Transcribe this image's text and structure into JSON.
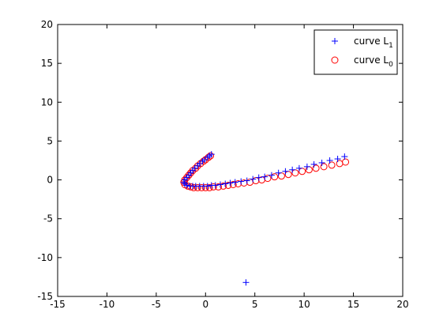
{
  "chart_data": {
    "type": "scatter",
    "title": "",
    "xlabel": "",
    "ylabel": "",
    "xlim": [
      -15,
      20
    ],
    "ylim": [
      -15,
      20
    ],
    "grid": false,
    "legend_position": "top-right",
    "x_ticks": [
      -15,
      -10,
      -5,
      0,
      5,
      10,
      15,
      20
    ],
    "y_ticks": [
      -15,
      -10,
      -5,
      0,
      5,
      10,
      15,
      20
    ],
    "x_tick_labels": [
      "-15",
      "-10",
      "-5",
      "0",
      "5",
      "10",
      "15",
      "20"
    ],
    "y_tick_labels": [
      "-15",
      "-10",
      "-5",
      "0",
      "5",
      "10",
      "15",
      "20"
    ],
    "series": [
      {
        "name": "curve L1",
        "legend_text": "curve L",
        "legend_subscript": "1",
        "marker": "plus",
        "color": "#0000ff",
        "points": [
          [
            0.6,
            3.3
          ],
          [
            0.4,
            3.1
          ],
          [
            0.2,
            2.9
          ],
          [
            -0.1,
            2.6
          ],
          [
            -0.3,
            2.4
          ],
          [
            -0.6,
            2.1
          ],
          [
            -0.8,
            1.8
          ],
          [
            -1.1,
            1.5
          ],
          [
            -1.3,
            1.2
          ],
          [
            -1.5,
            0.9
          ],
          [
            -1.7,
            0.6
          ],
          [
            -1.9,
            0.3
          ],
          [
            -2.1,
            0.0
          ],
          [
            -2.2,
            -0.3
          ],
          [
            -2.1,
            -0.5
          ],
          [
            -1.9,
            -0.7
          ],
          [
            -1.6,
            -0.8
          ],
          [
            -1.3,
            -0.8
          ],
          [
            -1.0,
            -0.8
          ],
          [
            -0.6,
            -0.8
          ],
          [
            -0.2,
            -0.8
          ],
          [
            0.2,
            -0.8
          ],
          [
            0.6,
            -0.7
          ],
          [
            1.0,
            -0.7
          ],
          [
            1.5,
            -0.6
          ],
          [
            2.0,
            -0.5
          ],
          [
            2.5,
            -0.4
          ],
          [
            3.0,
            -0.3
          ],
          [
            3.6,
            -0.2
          ],
          [
            4.2,
            -0.1
          ],
          [
            4.8,
            0.1
          ],
          [
            5.4,
            0.3
          ],
          [
            6.0,
            0.4
          ],
          [
            6.7,
            0.6
          ],
          [
            7.4,
            0.9
          ],
          [
            8.1,
            1.1
          ],
          [
            8.8,
            1.3
          ],
          [
            9.5,
            1.5
          ],
          [
            10.3,
            1.7
          ],
          [
            11.0,
            2.0
          ],
          [
            11.8,
            2.2
          ],
          [
            12.6,
            2.5
          ],
          [
            13.4,
            2.7
          ],
          [
            14.1,
            3.0
          ],
          [
            4.1,
            -13.2
          ]
        ]
      },
      {
        "name": "curve L0",
        "legend_text": "curve L",
        "legend_subscript": "0",
        "marker": "circle",
        "color": "#ff0000",
        "points": [
          [
            0.5,
            3.1
          ],
          [
            0.3,
            2.9
          ],
          [
            0.0,
            2.6
          ],
          [
            -0.2,
            2.4
          ],
          [
            -0.5,
            2.1
          ],
          [
            -0.8,
            1.8
          ],
          [
            -1.0,
            1.5
          ],
          [
            -1.3,
            1.2
          ],
          [
            -1.5,
            0.9
          ],
          [
            -1.7,
            0.6
          ],
          [
            -1.9,
            0.3
          ],
          [
            -2.1,
            0.0
          ],
          [
            -2.2,
            -0.3
          ],
          [
            -2.1,
            -0.6
          ],
          [
            -1.8,
            -0.8
          ],
          [
            -1.5,
            -0.9
          ],
          [
            -1.2,
            -1.0
          ],
          [
            -0.8,
            -1.0
          ],
          [
            -0.4,
            -1.0
          ],
          [
            0.0,
            -1.0
          ],
          [
            0.4,
            -1.0
          ],
          [
            0.8,
            -0.9
          ],
          [
            1.3,
            -0.9
          ],
          [
            1.8,
            -0.8
          ],
          [
            2.3,
            -0.7
          ],
          [
            2.8,
            -0.6
          ],
          [
            3.3,
            -0.5
          ],
          [
            3.9,
            -0.4
          ],
          [
            4.5,
            -0.3
          ],
          [
            5.1,
            -0.1
          ],
          [
            5.7,
            0.0
          ],
          [
            6.3,
            0.2
          ],
          [
            7.0,
            0.4
          ],
          [
            7.7,
            0.5
          ],
          [
            8.4,
            0.7
          ],
          [
            9.1,
            0.9
          ],
          [
            9.8,
            1.1
          ],
          [
            10.5,
            1.3
          ],
          [
            11.2,
            1.5
          ],
          [
            12.0,
            1.7
          ],
          [
            12.8,
            1.9
          ],
          [
            13.6,
            2.1
          ],
          [
            14.2,
            2.3
          ]
        ]
      }
    ]
  }
}
